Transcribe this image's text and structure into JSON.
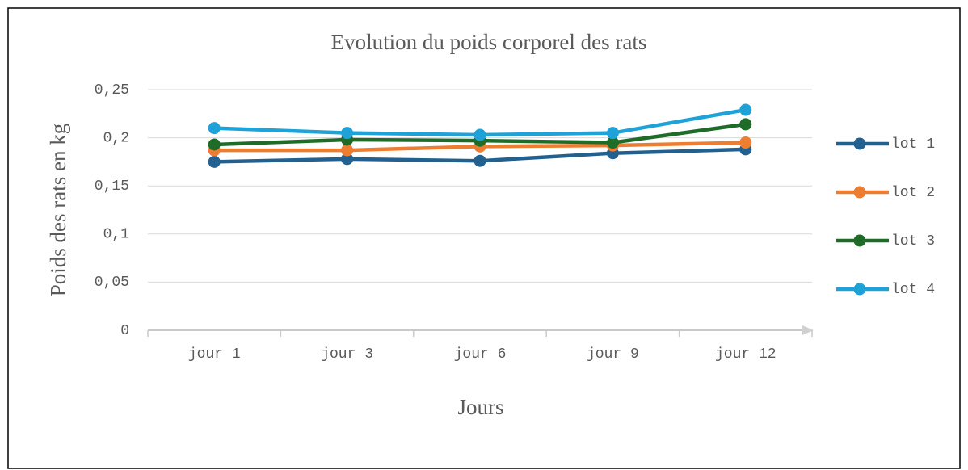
{
  "chart_data": {
    "type": "line",
    "title": "Evolution du poids corporel des rats",
    "x_label": "Jours",
    "y_label": "Poids des rats en kg",
    "categories": [
      "jour 1",
      "jour 3",
      "jour 6",
      "jour 9",
      "jour 12"
    ],
    "series": [
      {
        "name": "lot 1",
        "color": "#22618f",
        "values": [
          0.175,
          0.178,
          0.176,
          0.184,
          0.188
        ]
      },
      {
        "name": "lot 2",
        "color": "#ed7d31",
        "values": [
          0.187,
          0.187,
          0.191,
          0.192,
          0.195
        ]
      },
      {
        "name": "lot 3",
        "color": "#1f6b28",
        "values": [
          0.193,
          0.198,
          0.197,
          0.195,
          0.214
        ]
      },
      {
        "name": "lot 4",
        "color": "#1ea2d8",
        "values": [
          0.21,
          0.205,
          0.203,
          0.205,
          0.229
        ]
      }
    ],
    "ylim": [
      0,
      0.25
    ],
    "yticks": [
      0,
      {
        "value": 0.05,
        "label": "0,05"
      },
      {
        "value": 0.1,
        "label": "0,1"
      },
      {
        "value": 0.15,
        "label": "0,15"
      },
      {
        "value": 0.2,
        "label": "0,2"
      },
      {
        "value": 0.25,
        "label": "0,25"
      }
    ],
    "grid": true,
    "legend": "right"
  }
}
